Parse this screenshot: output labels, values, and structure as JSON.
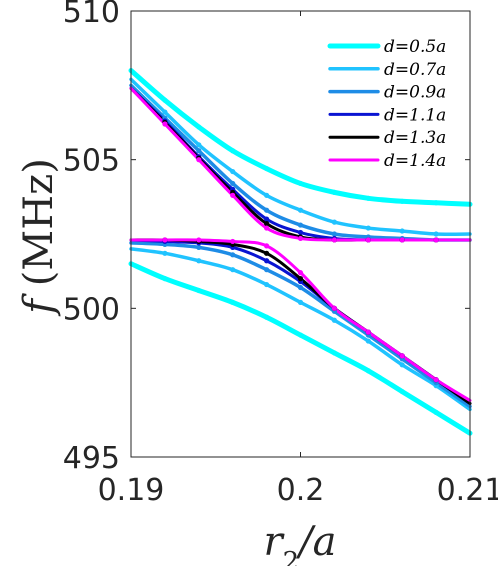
{
  "chart_data": {
    "type": "line",
    "xlabel": "r_2/a",
    "ylabel": "f (MHz)",
    "xlim": [
      0.19,
      0.21
    ],
    "ylim": [
      495,
      510
    ],
    "xticks": [
      0.19,
      0.2,
      0.21
    ],
    "xtick_labels": [
      "0.19",
      "0.2",
      "0.21"
    ],
    "yticks": [
      495,
      500,
      505,
      510
    ],
    "ytick_labels": [
      "495",
      "500",
      "505",
      "510"
    ],
    "legend_position": "top-right",
    "grid": false,
    "x": [
      0.19,
      0.192,
      0.194,
      0.196,
      0.198,
      0.2,
      0.202,
      0.204,
      0.206,
      0.208,
      0.21
    ],
    "series": [
      {
        "name": "d=0.5a",
        "color": "#00ffff",
        "width": 5,
        "upper": [
          508.0,
          507.0,
          506.1,
          505.3,
          504.7,
          504.2,
          503.9,
          503.7,
          503.6,
          503.55,
          503.5
        ],
        "lower": [
          501.5,
          501.0,
          500.6,
          500.2,
          499.7,
          499.1,
          498.5,
          497.9,
          497.2,
          496.5,
          495.8
        ]
      },
      {
        "name": "d=0.7a",
        "color": "#20c3ff",
        "width": 3.5,
        "upper": [
          507.7,
          506.6,
          505.5,
          504.6,
          503.8,
          503.3,
          502.9,
          502.7,
          502.6,
          502.5,
          502.5
        ],
        "lower": [
          502.0,
          501.85,
          501.6,
          501.3,
          500.8,
          500.2,
          499.6,
          498.9,
          498.1,
          497.4,
          496.6
        ]
      },
      {
        "name": "d=0.9a",
        "color": "#1e8ce6",
        "width": 3.5,
        "upper": [
          507.5,
          506.4,
          505.3,
          504.2,
          503.3,
          502.8,
          502.5,
          502.4,
          502.35,
          502.3,
          502.3
        ],
        "lower": [
          502.2,
          502.15,
          502.05,
          501.8,
          501.3,
          500.7,
          499.9,
          499.1,
          498.3,
          497.5,
          496.7
        ]
      },
      {
        "name": "d=1.1a",
        "color": "#0a14d2",
        "width": 3,
        "upper": [
          507.4,
          506.3,
          505.1,
          504.0,
          503.0,
          502.55,
          502.35,
          502.3,
          502.3,
          502.3,
          502.3
        ],
        "lower": [
          502.3,
          502.25,
          502.2,
          502.05,
          501.6,
          500.9,
          500.0,
          499.2,
          498.4,
          497.6,
          496.8
        ]
      },
      {
        "name": "d=1.3a",
        "color": "#000000",
        "width": 3,
        "upper": [
          507.4,
          506.25,
          505.05,
          503.9,
          502.85,
          502.4,
          502.3,
          502.3,
          502.3,
          502.3,
          502.3
        ],
        "lower": [
          502.3,
          502.3,
          502.25,
          502.15,
          501.85,
          501.0,
          500.0,
          499.2,
          498.4,
          497.6,
          496.8
        ]
      },
      {
        "name": "d=1.4a",
        "color": "#ff00ff",
        "width": 3,
        "upper": [
          507.4,
          506.2,
          505.0,
          503.8,
          502.7,
          502.35,
          502.3,
          502.3,
          502.3,
          502.3,
          502.3
        ],
        "lower": [
          502.3,
          502.3,
          502.3,
          502.25,
          502.1,
          501.2,
          500.0,
          499.2,
          498.4,
          497.6,
          496.9
        ]
      }
    ]
  }
}
